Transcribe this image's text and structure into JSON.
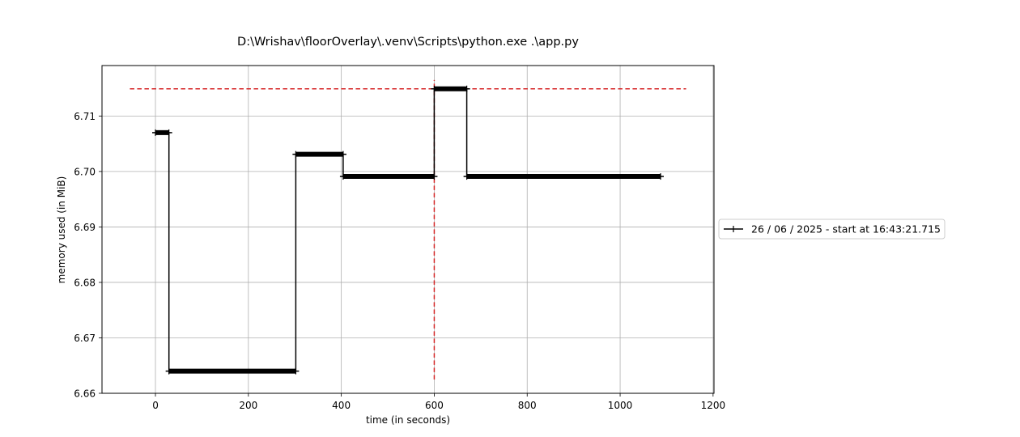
{
  "chart_data": {
    "type": "line",
    "title": "D:\\Wrishav\\floorOverlay\\.venv\\Scripts\\python.exe .\\app.py",
    "xlabel": "time (in seconds)",
    "ylabel": "memory used (in MiB)",
    "xlim": [
      -115,
      1202
    ],
    "ylim": [
      6.66,
      6.7191
    ],
    "xticks": [
      0,
      200,
      400,
      600,
      800,
      1000,
      1200
    ],
    "xtick_labels": [
      "0",
      "200",
      "400",
      "600",
      "800",
      "1000",
      "1200"
    ],
    "yticks": [
      6.66,
      6.67,
      6.68,
      6.69,
      6.7,
      6.71
    ],
    "ytick_labels": [
      "6.66",
      "6.67",
      "6.68",
      "6.69",
      "6.70",
      "6.71"
    ],
    "grid": true,
    "legend_position": "outside-right",
    "series": [
      {
        "name": "26 / 06 / 2025 - start at 16:43:21.715",
        "color": "#000000",
        "marker": "+",
        "x": [
          0,
          29,
          29,
          302,
          302,
          404,
          404,
          600,
          600,
          670,
          670,
          1087
        ],
        "y": [
          6.707,
          6.707,
          6.664,
          6.664,
          6.7031,
          6.7031,
          6.6991,
          6.6991,
          6.7149,
          6.7149,
          6.6991,
          6.6991
        ]
      }
    ],
    "annotations": [
      {
        "type": "hline",
        "y": 6.7149,
        "xmin": -55,
        "xmax": 1142,
        "color": "#d62728",
        "style": "dashed"
      },
      {
        "type": "vline",
        "x": 600,
        "ymin": 6.6625,
        "ymax": 6.7165,
        "color": "#d62728",
        "style": "dashed"
      }
    ]
  }
}
